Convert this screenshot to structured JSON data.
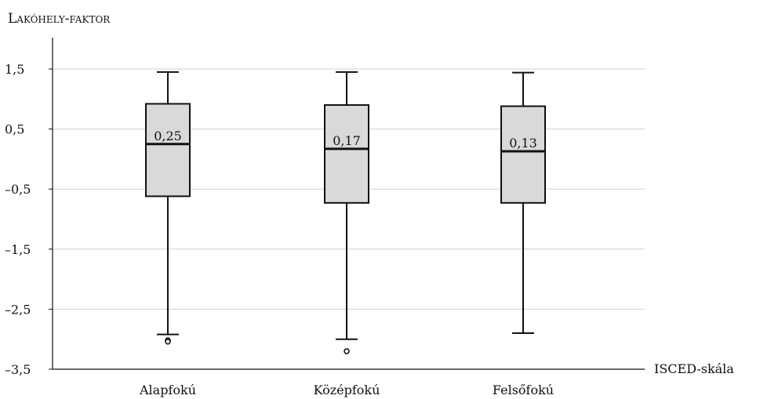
{
  "chart_data": {
    "type": "boxplot",
    "ylabel": "Lakóhely-faktor",
    "xlabel": "ISCED-skála",
    "ylim": [
      -3.5,
      2.0
    ],
    "yticks": [
      1.5,
      0.5,
      -0.5,
      -1.5,
      -2.5,
      -3.5
    ],
    "ytick_labels": [
      "1,5",
      "0,5",
      "–0,5",
      "–1,5",
      "–2,5",
      "–3,5"
    ],
    "grid": true,
    "categories": [
      "Alapfokú",
      "Középfokú",
      "Felsőfokú"
    ],
    "boxes": [
      {
        "category": "Alapfokú",
        "whisker_low": -2.92,
        "q1": -0.62,
        "median": 0.25,
        "q3": 0.92,
        "whisker_high": 1.45,
        "median_label": "0,25",
        "outliers": [
          -3.02,
          -3.04
        ]
      },
      {
        "category": "Középfokú",
        "whisker_low": -3.0,
        "q1": -0.73,
        "median": 0.17,
        "q3": 0.9,
        "whisker_high": 1.45,
        "median_label": "0,17",
        "outliers": [
          -3.2
        ]
      },
      {
        "category": "Felsőfokú",
        "whisker_low": -2.9,
        "q1": -0.73,
        "median": 0.13,
        "q3": 0.88,
        "whisker_high": 1.44,
        "median_label": "0,13",
        "outliers": []
      }
    ],
    "colors": {
      "box_fill": "#d9d9d9",
      "stroke": "#111111",
      "grid": "#d0d0d0"
    }
  }
}
